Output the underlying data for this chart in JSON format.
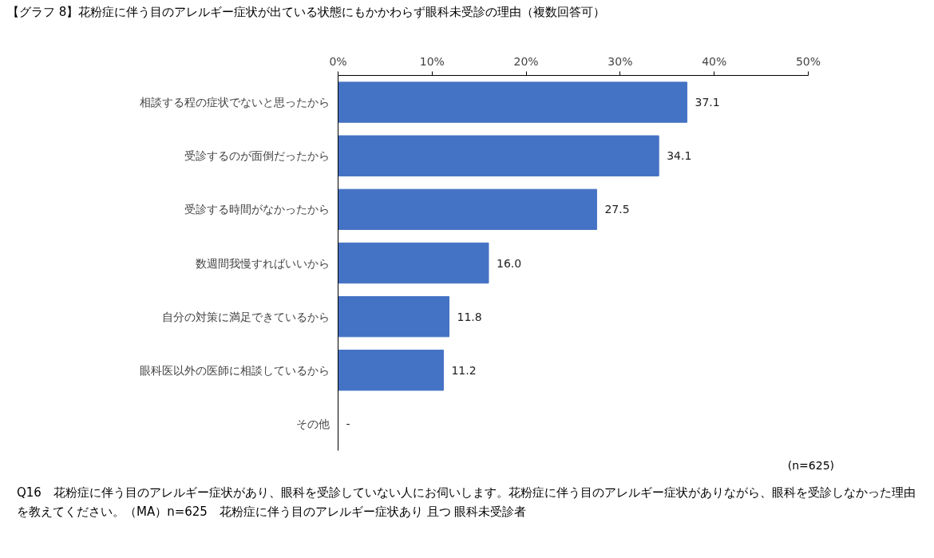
{
  "chart_data": {
    "type": "bar",
    "orientation": "horizontal",
    "title": "【グラフ 8】花粉症に伴う目のアレルギー症状が出ている状態にもかかわらず眼科未受診の理由（複数回答可）",
    "categories": [
      "相談する程の症状でないと思ったから",
      "受診するのが面倒だったから",
      "受診する時間がなかったから",
      "数週間我慢すればいいから",
      "自分の対策に満足できているから",
      "眼科医以外の医師に相談しているから",
      "その他"
    ],
    "values": [
      37.1,
      34.1,
      27.5,
      16.0,
      11.8,
      11.2,
      null
    ],
    "value_labels": [
      "37.1",
      "34.1",
      "27.5",
      "16.0",
      "11.8",
      "11.2",
      "-"
    ],
    "color": "#4472c4",
    "xlim": [
      0,
      50
    ],
    "xticks": [
      {
        "value": 0,
        "label": "0%"
      },
      {
        "value": 10,
        "label": "10%"
      },
      {
        "value": 20,
        "label": "20%"
      },
      {
        "value": 30,
        "label": "30%"
      },
      {
        "value": 40,
        "label": "40%"
      },
      {
        "value": 50,
        "label": "50%"
      }
    ],
    "grid": false,
    "annotations": [
      "(n=625)",
      "Q16　花粉症に伴う目のアレルギー症状があり、眼科を受診していない人にお伺いします。花粉症に伴う目のアレルギー症状がありながら、眼科を受診しなかった理由を教えてください。（MA）n=625　花粉症に伴う目のアレルギー症状あり 且つ 眼科未受診者"
    ]
  }
}
